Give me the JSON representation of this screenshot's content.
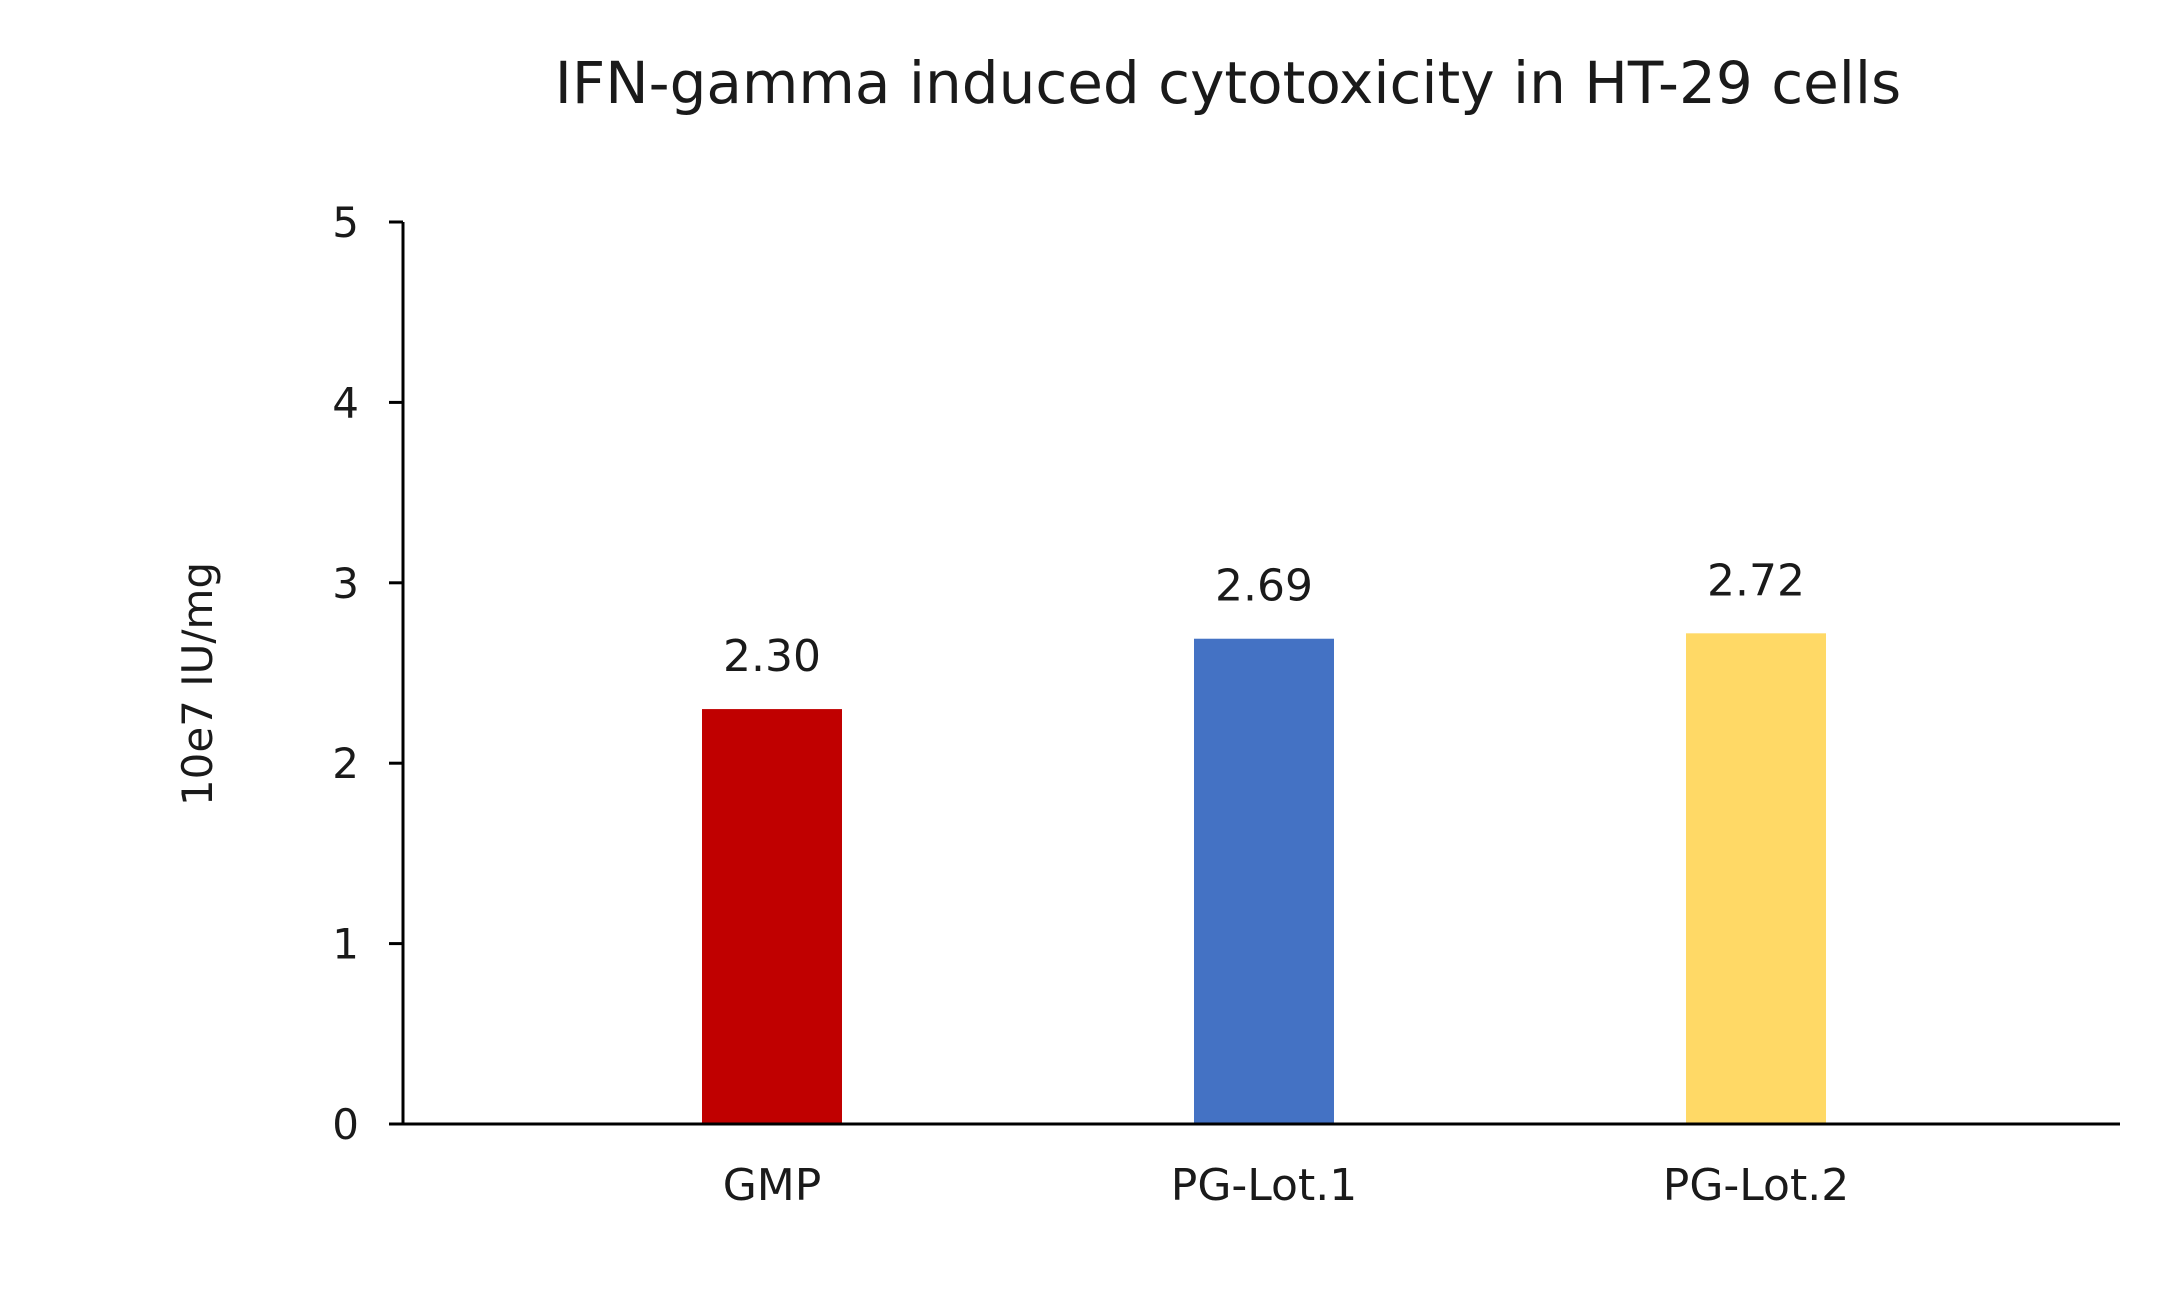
{
  "chart_data": {
    "type": "bar",
    "title": "IFN-gamma induced cytotoxicity in HT-29 cells",
    "xlabel": "",
    "ylabel": "10e7 IU/mg",
    "categories": [
      "GMP",
      "PG-Lot.1",
      "PG-Lot.2"
    ],
    "values": [
      2.3,
      2.69,
      2.72
    ],
    "value_labels": [
      "2.30",
      "2.69",
      "2.72"
    ],
    "colors": [
      "#c00000",
      "#4472c4",
      "#ffd966"
    ],
    "ylim": [
      0,
      5
    ],
    "yticks": [
      0,
      1,
      2,
      3,
      4,
      5
    ],
    "ytick_labels": [
      "0",
      "1",
      "2",
      "3",
      "4",
      "5"
    ],
    "grid": false,
    "legend": "none"
  }
}
